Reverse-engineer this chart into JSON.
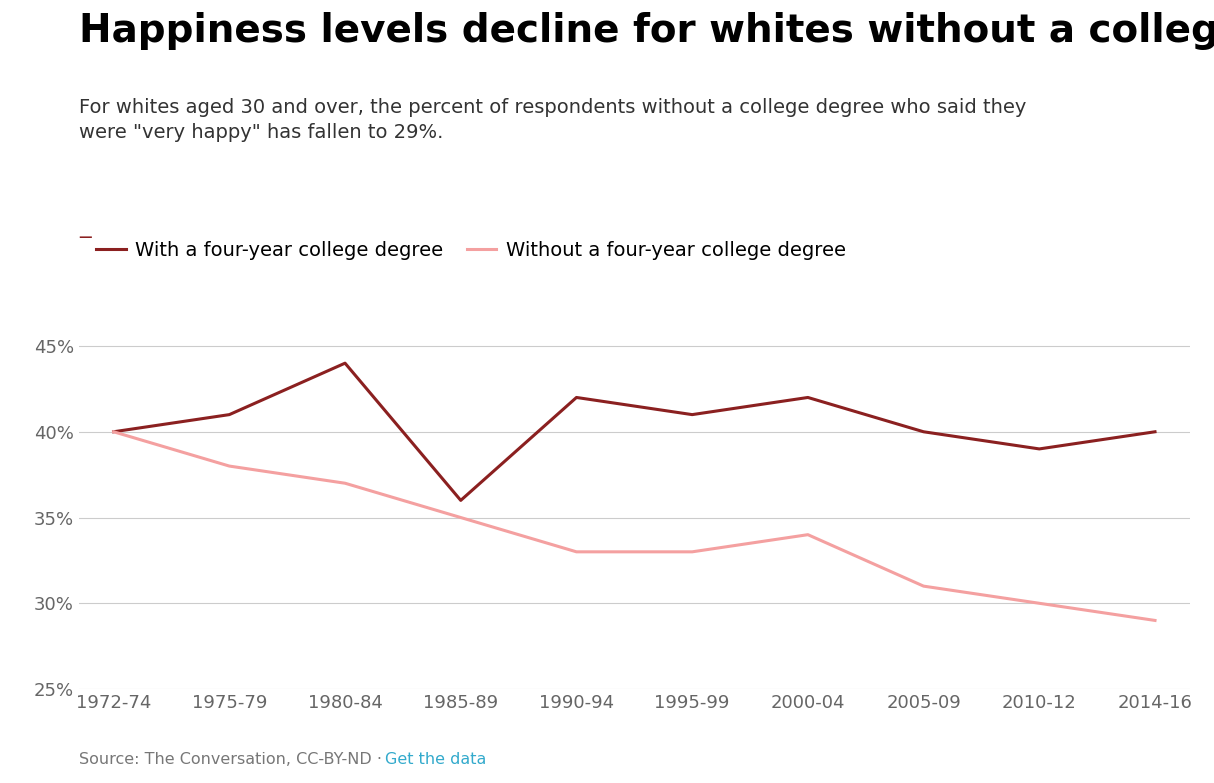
{
  "title": "Happiness levels decline for whites without a college degree",
  "subtitle": "For whites aged 30 and over, the percent of respondents without a college degree who said they\nwere \"very happy\" has fallen to 29%.",
  "x_labels": [
    "1972-74",
    "1975-79",
    "1980-84",
    "1985-89",
    "1990-94",
    "1995-99",
    "2000-04",
    "2005-09",
    "2010-12",
    "2014-16"
  ],
  "with_degree": [
    40,
    41,
    44,
    36,
    42,
    41,
    42,
    40,
    39,
    40
  ],
  "without_degree": [
    40,
    38,
    37,
    35,
    33,
    33,
    34,
    31,
    30,
    29
  ],
  "color_with": "#8B2020",
  "color_without": "#F4A0A0",
  "ylim": [
    25,
    46
  ],
  "yticks": [
    25,
    30,
    35,
    40,
    45
  ],
  "legend_with": "With a four-year college degree",
  "legend_without": "Without a four-year college degree",
  "source_text": "Source: The Conversation, CC-BY-ND · ",
  "source_link": "Get the data",
  "background_color": "#ffffff",
  "grid_color": "#cccccc",
  "title_fontsize": 28,
  "subtitle_fontsize": 14,
  "axis_fontsize": 13,
  "legend_fontsize": 14
}
